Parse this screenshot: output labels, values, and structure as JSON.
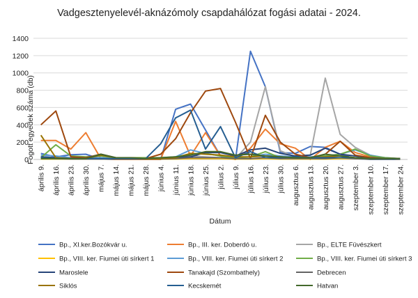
{
  "chart_data": {
    "type": "line",
    "title": "Vadgesztenyelevél-aknázómoly csapdahálózat fogási adatai - 2024.",
    "xlabel": "Dátum",
    "ylabel": "Fogott egyedek száma (db)",
    "ylim": [
      0,
      1400
    ],
    "yticks": [
      "0",
      "200",
      "400",
      "600",
      "800",
      "1000",
      "1200",
      "1400"
    ],
    "grid": true,
    "legend_position": "bottom",
    "x": [
      "április 9.",
      "április 16.",
      "április 23.",
      "április 30.",
      "május 7.",
      "május 14.",
      "május 21.",
      "május 28.",
      "június 4.",
      "június 11.",
      "június 18.",
      "június 25.",
      "július 2.",
      "július 9.",
      "július 16.",
      "július 23.",
      "július 30.",
      "augusztus 6.",
      "augusztus 13.",
      "augusztus 20.",
      "augusztus 27.",
      "szeptember 3.",
      "szeptember 10.",
      "szeptember 17.",
      "szeptember 24."
    ],
    "series": [
      {
        "name": "Bp., XI.ker.Bozókvár u.",
        "color": "#4472c4",
        "values": [
          70,
          30,
          55,
          60,
          5,
          0,
          0,
          0,
          0,
          580,
          640,
          340,
          40,
          0,
          1250,
          840,
          80,
          70,
          150,
          140,
          60,
          10,
          0,
          0,
          0
        ]
      },
      {
        "name": "Bp., III. ker. Doberdó u.",
        "color": "#ed7d31",
        "values": [
          220,
          220,
          120,
          310,
          10,
          0,
          0,
          0,
          0,
          440,
          40,
          310,
          40,
          0,
          130,
          350,
          180,
          130,
          0,
          140,
          210,
          80,
          30,
          10,
          0
        ]
      },
      {
        "name": "Bp., ELTE Füvészkert",
        "color": "#a5a5a5",
        "values": [
          30,
          20,
          10,
          20,
          20,
          10,
          10,
          10,
          10,
          20,
          40,
          30,
          20,
          10,
          200,
          840,
          100,
          30,
          50,
          940,
          290,
          140,
          50,
          10,
          0
        ]
      },
      {
        "name": "Bp., VIII. ker. Fiumei úti sírkert 1",
        "color": "#ffc000",
        "values": [
          5,
          5,
          5,
          5,
          5,
          5,
          5,
          5,
          5,
          5,
          10,
          10,
          10,
          5,
          5,
          10,
          5,
          5,
          5,
          5,
          10,
          10,
          5,
          5,
          5
        ]
      },
      {
        "name": "Bp., VIII. ker. Fiumei úti sírkert 2",
        "color": "#5b9bd5",
        "values": [
          50,
          40,
          20,
          20,
          20,
          10,
          10,
          10,
          10,
          30,
          110,
          70,
          40,
          20,
          30,
          60,
          40,
          30,
          30,
          40,
          60,
          110,
          50,
          20,
          10
        ]
      },
      {
        "name": "Bp., VIII. ker. Fiumei úti sírkert 3",
        "color": "#70ad47",
        "values": [
          20,
          170,
          40,
          30,
          40,
          20,
          20,
          20,
          20,
          30,
          60,
          70,
          40,
          20,
          30,
          90,
          20,
          20,
          20,
          40,
          60,
          120,
          40,
          20,
          10
        ]
      },
      {
        "name": "Maroslele",
        "color": "#264478",
        "values": [
          30,
          20,
          10,
          10,
          60,
          20,
          10,
          10,
          10,
          20,
          30,
          80,
          80,
          40,
          110,
          130,
          70,
          40,
          50,
          130,
          60,
          40,
          20,
          10,
          10
        ]
      },
      {
        "name": "Tanakajd (Szombathely)",
        "color": "#9e480e",
        "values": [
          400,
          560,
          30,
          20,
          60,
          20,
          10,
          10,
          60,
          240,
          540,
          790,
          820,
          430,
          10,
          510,
          200,
          60,
          20,
          60,
          210,
          50,
          20,
          10,
          10
        ]
      },
      {
        "name": "Debrecen",
        "color": "#636363",
        "values": [
          10,
          10,
          5,
          5,
          5,
          5,
          5,
          5,
          5,
          10,
          20,
          20,
          20,
          10,
          10,
          20,
          10,
          10,
          10,
          10,
          20,
          10,
          5,
          5,
          5
        ]
      },
      {
        "name": "Siklós",
        "color": "#997300",
        "values": [
          280,
          20,
          10,
          10,
          50,
          20,
          20,
          10,
          10,
          20,
          70,
          60,
          50,
          30,
          30,
          40,
          30,
          20,
          20,
          30,
          40,
          20,
          10,
          10,
          5
        ]
      },
      {
        "name": "Kecskemét",
        "color": "#255e91",
        "values": [
          20,
          10,
          10,
          10,
          10,
          10,
          10,
          10,
          180,
          480,
          570,
          120,
          380,
          20,
          90,
          20,
          20,
          30,
          20,
          20,
          20,
          20,
          10,
          10,
          5
        ]
      },
      {
        "name": "Hatvan",
        "color": "#43682b",
        "values": [
          10,
          10,
          10,
          10,
          60,
          20,
          20,
          10,
          20,
          30,
          50,
          90,
          90,
          50,
          60,
          40,
          30,
          20,
          20,
          60,
          40,
          20,
          10,
          10,
          10
        ]
      }
    ]
  }
}
